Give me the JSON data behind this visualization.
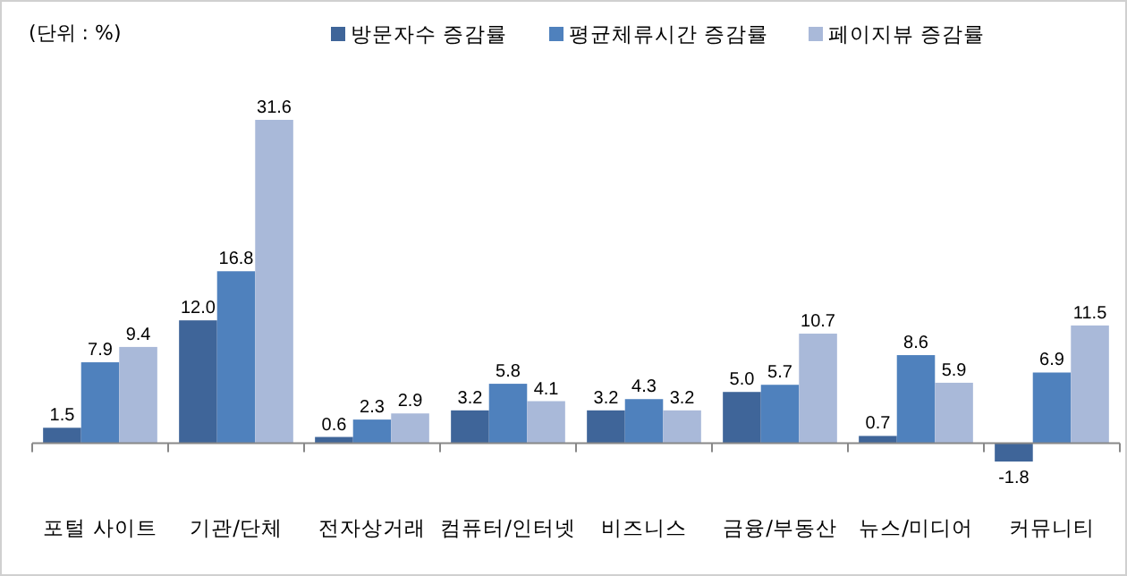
{
  "chart_data": {
    "type": "bar",
    "categories": [
      "포털 사이트",
      "기관/단체",
      "전자상거래",
      "컴퓨터/인터넷",
      "비즈니스",
      "금융/부동산",
      "뉴스/미디어",
      "커뮤니티"
    ],
    "series": [
      {
        "name": "방문자수 증감률",
        "color": "#3f6599",
        "values": [
          1.5,
          12.0,
          0.6,
          3.2,
          3.2,
          5.0,
          0.7,
          -1.8
        ],
        "value_labels": [
          "1.5",
          "12.0",
          "0.6",
          "3.2",
          "3.2",
          "5.0",
          "0.7",
          "-1.8"
        ]
      },
      {
        "name": "평균체류시간 증감률",
        "color": "#4f81bd",
        "values": [
          7.9,
          16.8,
          2.3,
          5.8,
          4.3,
          5.7,
          8.6,
          6.9
        ],
        "value_labels": [
          "7.9",
          "16.8",
          "2.3",
          "5.8",
          "4.3",
          "5.7",
          "8.6",
          "6.9"
        ]
      },
      {
        "name": "페이지뷰 증감률",
        "color": "#a9b9d9",
        "values": [
          9.4,
          31.6,
          2.9,
          4.1,
          3.2,
          10.7,
          5.9,
          11.5
        ],
        "value_labels": [
          "9.4",
          "31.6",
          "2.9",
          "4.1",
          "3.2",
          "10.7",
          "5.9",
          "11.5"
        ]
      }
    ],
    "legend": "top",
    "grid": false,
    "annotations": [
      "(단위 : %)"
    ]
  }
}
